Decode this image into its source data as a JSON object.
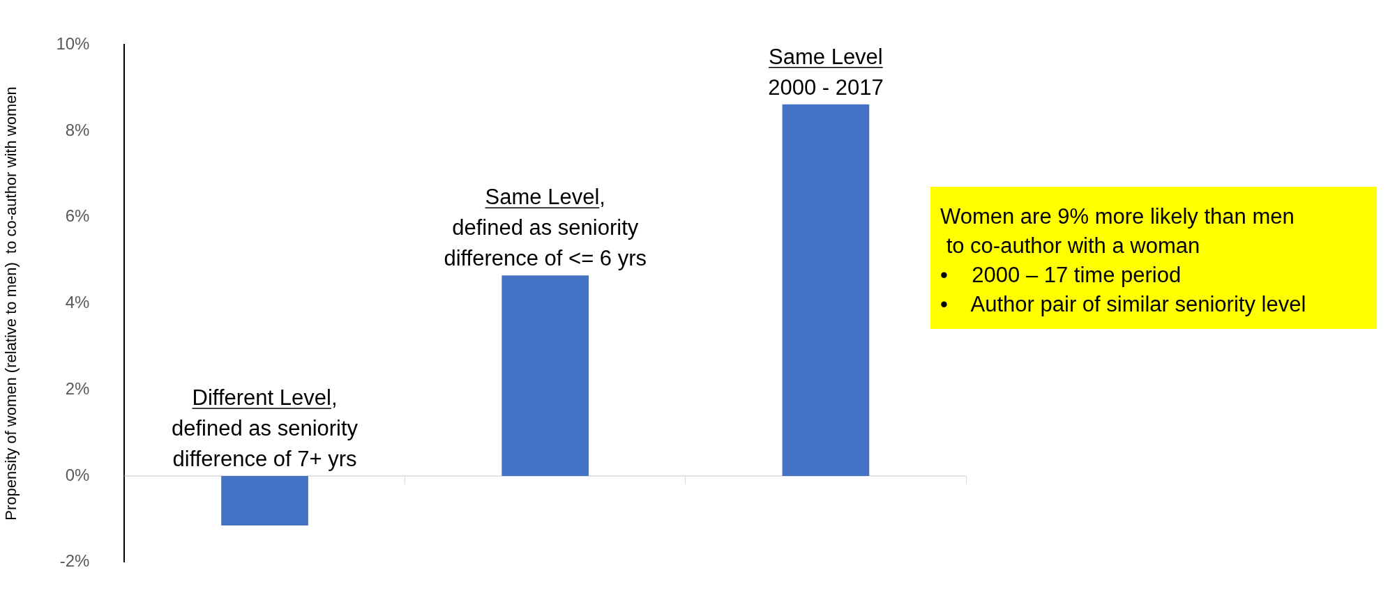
{
  "chart_data": {
    "type": "bar",
    "ylabel": "Propensity of women (relative to men)  to co-author with women",
    "categories": [
      null,
      null,
      null
    ],
    "values": [
      -1.15,
      4.65,
      8.62
    ],
    "color": "#4472c4",
    "ylim": [
      -2,
      10
    ],
    "yticks": [
      {
        "value": -2,
        "label": "-2%"
      },
      {
        "value": 0,
        "label": "0%"
      },
      {
        "value": 2,
        "label": "2%"
      },
      {
        "value": 4,
        "label": "4%"
      },
      {
        "value": 6,
        "label": "6%"
      },
      {
        "value": 8,
        "label": "8%"
      },
      {
        "value": 10,
        "label": "10%"
      }
    ],
    "grid": false,
    "ref_lines": [
      {
        "axis": "y",
        "value": 0,
        "color": "#d9d9d9"
      }
    ],
    "legend": false,
    "tick_labels": "y",
    "annotations": [
      "Different Level,\ndefined as seniority\ndifference of 7+ yrs",
      "Same Level,\ndefined as seniority\ndifference of <= 6 yrs",
      "Same Level\n2000 - 2017",
      "Women are 9% more likely than men\n to co-author with a woman\n•    2000 – 17 time period\n•    Author pair of similar seniority level"
    ]
  }
}
